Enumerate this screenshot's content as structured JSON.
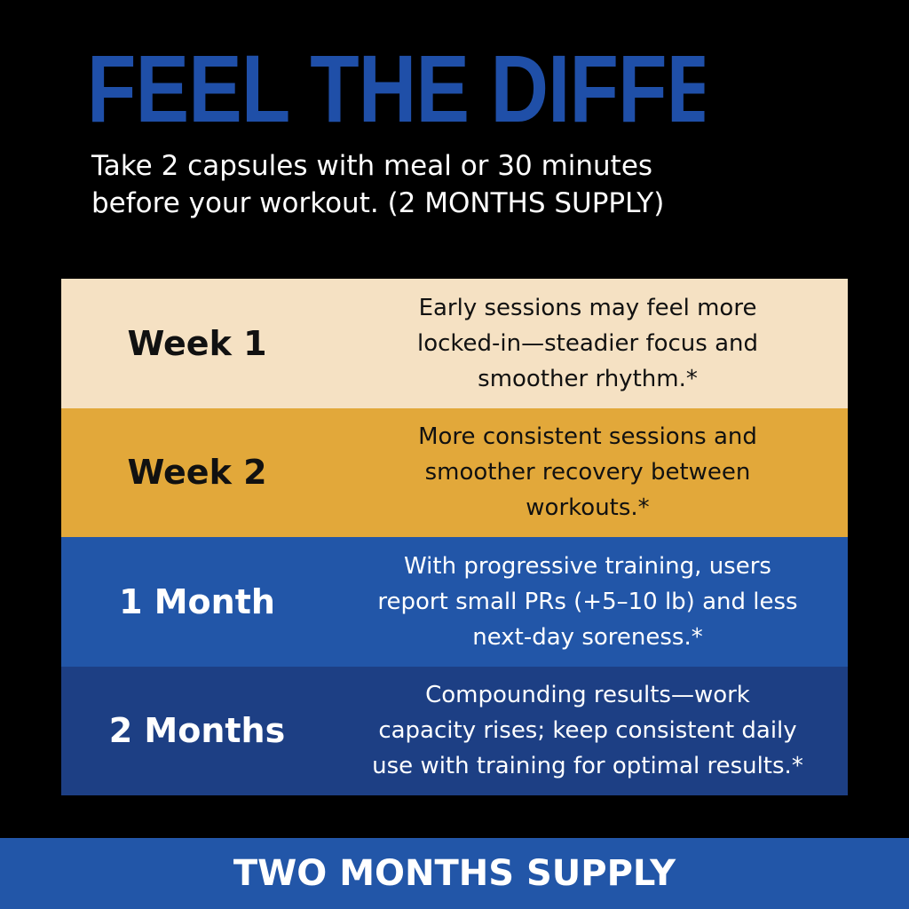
{
  "headline": "FEEL THE DIFFERENCE",
  "intro": {
    "line1": "Take 2 capsules with meal or 30 minutes",
    "line2": "before your workout. (2 MONTHS SUPPLY)"
  },
  "timeline": [
    {
      "period": "Week 1",
      "desc_lines": [
        "Early sessions may feel more",
        "locked-in—steadier focus and",
        "smoother rhythm.*"
      ]
    },
    {
      "period": "Week 2",
      "desc_lines": [
        "More consistent sessions and",
        "smoother recovery between",
        "workouts.*"
      ]
    },
    {
      "period": "1 Month",
      "desc_lines": [
        "With progressive training, users",
        "report small PRs (+5–10 lb) and less",
        "next-day soreness.*"
      ]
    },
    {
      "period": "2 Months",
      "desc_lines": [
        "Compounding results—work",
        "capacity rises; keep consistent daily",
        "use with training for optimal results.*"
      ]
    }
  ],
  "footer": {
    "label": "TWO MONTHS SUPPLY"
  },
  "colors": {
    "background": "#000000",
    "headline_blue": "#1f4fa8",
    "week1_bg": "#f5e1c3",
    "week2_bg": "#e2a83a",
    "month1_bg": "#2256a8",
    "month2_bg": "#1d3f84",
    "footer_bg": "#2256a8"
  }
}
